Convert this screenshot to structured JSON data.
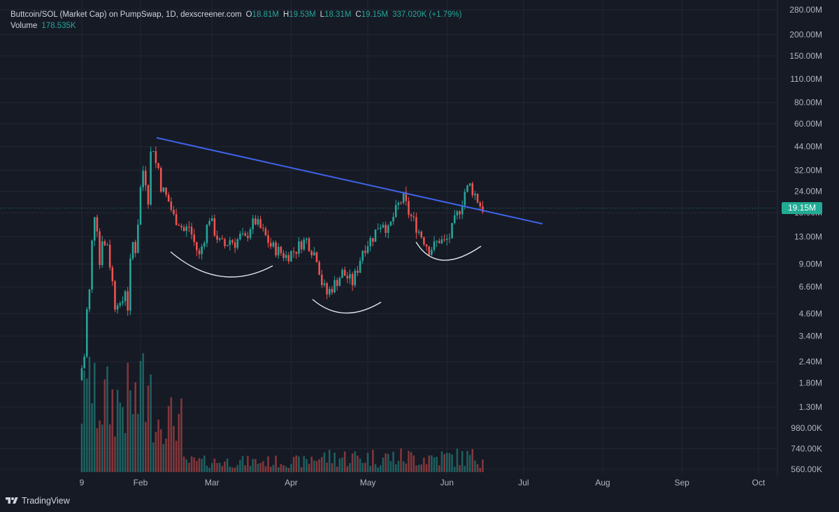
{
  "legend": {
    "title": "Buttcoin/SOL (Market Cap) on PumpSwap, 1D, dexscreener.com",
    "open_label": "O",
    "open": "18.81M",
    "high_label": "H",
    "high": "19.53M",
    "low_label": "L",
    "low": "18.31M",
    "close_label": "C",
    "close": "19.15M",
    "change": "337.020K (+1.79%)",
    "volume_label": "Volume",
    "volume": "178.535K"
  },
  "current_price_label": "19.15M",
  "footer": {
    "brand": "TradingView"
  },
  "colors": {
    "up": "#26a69a",
    "down": "#ef5350",
    "trendline": "#3f63ea",
    "background": "#161a25"
  },
  "chart_data": {
    "type": "candlestick",
    "title": "Buttcoin/SOL (Market Cap) on PumpSwap, 1D, dexscreener.com",
    "y_scale": "log",
    "y_ticks": [
      {
        "label": "280.00M",
        "value": 280000000
      },
      {
        "label": "200.00M",
        "value": 200000000
      },
      {
        "label": "150.00M",
        "value": 150000000
      },
      {
        "label": "110.00M",
        "value": 110000000
      },
      {
        "label": "80.00M",
        "value": 80000000
      },
      {
        "label": "60.00M",
        "value": 60000000
      },
      {
        "label": "44.00M",
        "value": 44000000
      },
      {
        "label": "32.00M",
        "value": 32000000
      },
      {
        "label": "24.00M",
        "value": 24000000
      },
      {
        "label": "18.00M",
        "value": 18000000
      },
      {
        "label": "13.00M",
        "value": 13000000
      },
      {
        "label": "9.00M",
        "value": 9000000
      },
      {
        "label": "6.60M",
        "value": 6600000
      },
      {
        "label": "4.60M",
        "value": 4600000
      },
      {
        "label": "3.40M",
        "value": 3400000
      },
      {
        "label": "2.40M",
        "value": 2400000
      },
      {
        "label": "1.80M",
        "value": 1800000
      },
      {
        "label": "1.30M",
        "value": 1300000
      },
      {
        "label": "980.00K",
        "value": 980000
      },
      {
        "label": "740.00K",
        "value": 740000
      },
      {
        "label": "560.00K",
        "value": 560000
      }
    ],
    "x_ticks": [
      {
        "label": "9",
        "day": 0
      },
      {
        "label": "Feb",
        "day": 23
      },
      {
        "label": "Mar",
        "day": 51
      },
      {
        "label": "Apr",
        "day": 82
      },
      {
        "label": "May",
        "day": 112
      },
      {
        "label": "Jun",
        "day": 143
      },
      {
        "label": "Jul",
        "day": 173
      },
      {
        "label": "Aug",
        "day": 204
      },
      {
        "label": "Sep",
        "day": 235
      },
      {
        "label": "Oct",
        "day": 265
      }
    ],
    "current_price": 19150000,
    "close_path": [
      [
        0,
        2.2
      ],
      [
        1,
        2.6
      ],
      [
        2,
        4.8
      ],
      [
        3,
        6.2
      ],
      [
        4,
        12
      ],
      [
        5,
        18
      ],
      [
        6,
        15
      ],
      [
        7,
        9
      ],
      [
        8,
        13
      ],
      [
        9,
        11.5
      ],
      [
        10,
        12
      ],
      [
        11,
        9
      ],
      [
        12,
        7
      ],
      [
        13,
        5.2
      ],
      [
        14,
        5.6
      ],
      [
        15,
        4.9
      ],
      [
        16,
        5.5
      ],
      [
        17,
        6.5
      ],
      [
        18,
        5.0
      ],
      [
        19,
        9.0
      ],
      [
        20,
        12.0
      ],
      [
        21,
        11.0
      ],
      [
        22,
        16
      ],
      [
        23,
        25
      ],
      [
        24,
        32
      ],
      [
        25,
        28
      ],
      [
        26,
        22
      ],
      [
        27,
        40
      ],
      [
        28,
        44
      ],
      [
        29,
        35
      ],
      [
        30,
        33
      ],
      [
        31,
        26
      ],
      [
        32,
        24
      ],
      [
        34,
        21
      ],
      [
        36,
        17
      ],
      [
        38,
        16
      ],
      [
        40,
        14
      ],
      [
        42,
        15
      ],
      [
        44,
        12
      ],
      [
        46,
        10
      ],
      [
        48,
        13
      ],
      [
        50,
        17
      ],
      [
        52,
        14
      ],
      [
        54,
        12
      ],
      [
        56,
        11.5
      ],
      [
        58,
        12.5
      ],
      [
        60,
        12
      ],
      [
        62,
        13
      ],
      [
        64,
        12.5
      ],
      [
        66,
        15
      ],
      [
        68,
        16
      ],
      [
        70,
        14.5
      ],
      [
        72,
        13
      ],
      [
        74,
        11.5
      ],
      [
        76,
        11
      ],
      [
        78,
        10.5
      ],
      [
        80,
        10
      ],
      [
        82,
        10.5
      ],
      [
        84,
        11
      ],
      [
        86,
        12
      ],
      [
        88,
        12.5
      ],
      [
        90,
        11
      ],
      [
        92,
        10
      ],
      [
        94,
        7
      ],
      [
        96,
        6
      ],
      [
        98,
        6.6
      ],
      [
        100,
        7.2
      ],
      [
        102,
        8
      ],
      [
        104,
        7.5
      ],
      [
        106,
        7
      ],
      [
        108,
        8.5
      ],
      [
        110,
        11
      ],
      [
        112,
        12
      ],
      [
        114,
        13
      ],
      [
        116,
        15
      ],
      [
        118,
        16
      ],
      [
        120,
        14
      ],
      [
        122,
        17
      ],
      [
        124,
        20
      ],
      [
        126,
        22
      ],
      [
        128,
        18
      ],
      [
        130,
        16
      ],
      [
        132,
        14
      ],
      [
        134,
        12.5
      ],
      [
        136,
        11
      ],
      [
        138,
        11.5
      ],
      [
        140,
        12.5
      ],
      [
        142,
        12
      ],
      [
        144,
        13
      ],
      [
        146,
        16
      ],
      [
        148,
        19
      ],
      [
        150,
        24
      ],
      [
        152,
        26
      ],
      [
        154,
        23
      ],
      [
        156,
        20
      ],
      [
        157,
        19.15
      ]
    ],
    "volume_note": "volume bars at bottom, heaviest in January–February"
  }
}
